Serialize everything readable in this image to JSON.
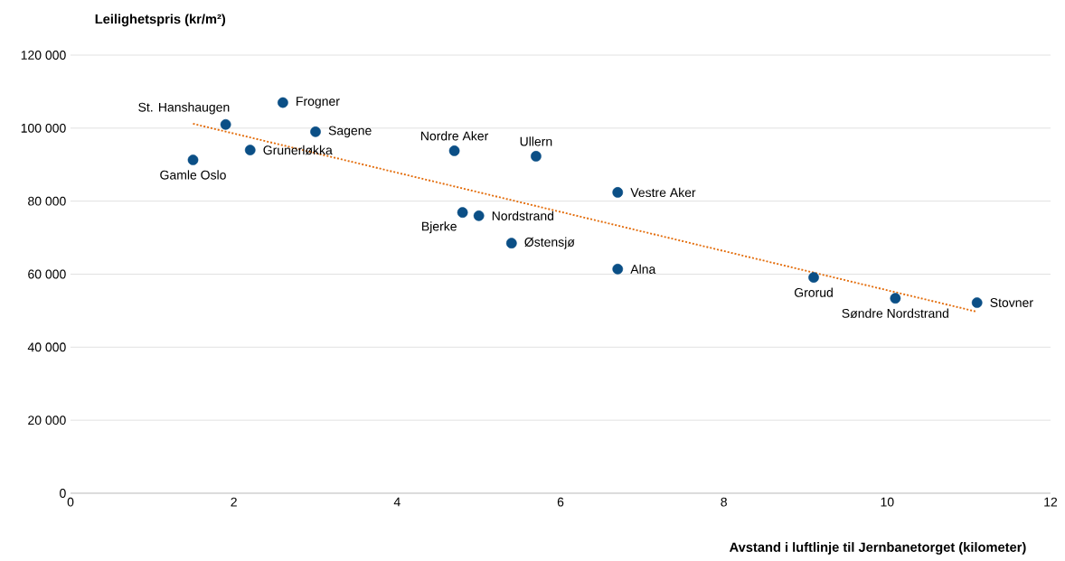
{
  "chart_data": {
    "type": "scatter",
    "xlabel": "Avstand i luftlinje til Jernbanetorget (kilometer)",
    "ylabel": "Leilighetspris (kr/m²)",
    "xlim": [
      0,
      12
    ],
    "ylim": [
      0,
      120000
    ],
    "xticks": [
      0,
      2,
      4,
      6,
      8,
      10,
      12
    ],
    "yticks": [
      0,
      {
        "value": 20000,
        "label": "20 000"
      },
      {
        "value": 40000,
        "label": "40 000"
      },
      {
        "value": 60000,
        "label": "60 000"
      },
      {
        "value": 80000,
        "label": "80 000"
      },
      {
        "value": 100000,
        "label": "100 000"
      },
      {
        "value": 120000,
        "label": "120 000"
      }
    ],
    "grid": "y",
    "marker": "circle",
    "series": [
      {
        "color": "#0b4f86",
        "x": [
          1.9,
          2.6,
          1.5,
          2.2,
          3.0,
          4.7,
          5.7,
          6.7,
          4.8,
          5.0,
          5.4,
          6.7,
          9.1,
          10.1,
          11.1
        ],
        "values": [
          101000,
          107000,
          91300,
          94000,
          99000,
          93800,
          92300,
          82400,
          76900,
          76000,
          68500,
          61400,
          59100,
          53400,
          52200
        ]
      },
      {
        "type": "line",
        "color": "#e36c0a",
        "line_style": "dotted",
        "marker": "none",
        "x": [
          1.5,
          11.1
        ],
        "values": [
          101200,
          49700
        ]
      }
    ],
    "annotations": [
      {
        "text": "St. Hanshaugen",
        "x": 1.9,
        "y": 101000
      },
      {
        "text": "Frogner",
        "x": 2.6,
        "y": 107000
      },
      {
        "text": "Gamle Oslo",
        "x": 1.5,
        "y": 91300
      },
      {
        "text": "Grunerløkka",
        "x": 2.2,
        "y": 94000
      },
      {
        "text": "Sagene",
        "x": 3.0,
        "y": 99000
      },
      {
        "text": "Nordre Aker",
        "x": 4.7,
        "y": 93800
      },
      {
        "text": "Ullern",
        "x": 5.7,
        "y": 92300
      },
      {
        "text": "Vestre Aker",
        "x": 6.7,
        "y": 82400
      },
      {
        "text": "Bjerke",
        "x": 4.8,
        "y": 76900
      },
      {
        "text": "Nordstrand",
        "x": 5.0,
        "y": 76000
      },
      {
        "text": "Østensjø",
        "x": 5.4,
        "y": 68500
      },
      {
        "text": "Alna",
        "x": 6.7,
        "y": 61400
      },
      {
        "text": "Grorud",
        "x": 9.1,
        "y": 59100
      },
      {
        "text": "Søndre Nordstrand",
        "x": 10.1,
        "y": 53400
      },
      {
        "text": "Stovner",
        "x": 11.1,
        "y": 52200
      }
    ]
  }
}
